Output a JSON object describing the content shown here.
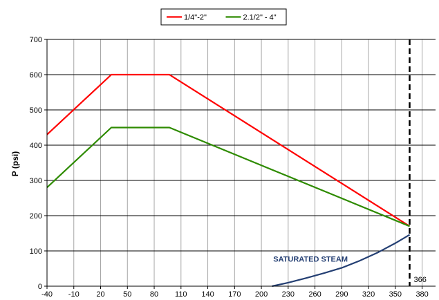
{
  "chart_data": {
    "type": "line",
    "title": "",
    "xlabel": "",
    "ylabel": "P (psi)",
    "x_ticks": [
      -40,
      -10,
      20,
      50,
      80,
      110,
      140,
      170,
      200,
      230,
      260,
      290,
      320,
      350,
      380
    ],
    "y_ticks": [
      0,
      100,
      200,
      300,
      400,
      500,
      600,
      700
    ],
    "xlim": [
      -40,
      395
    ],
    "ylim": [
      0,
      700
    ],
    "grid": true,
    "legend_position": "top-center",
    "series": [
      {
        "name": "1/4\"-2\"",
        "color": "#ff0000",
        "x": [
          -40,
          32,
          97,
          366
        ],
        "y": [
          430,
          600,
          600,
          170
        ]
      },
      {
        "name": "2.1/2\" - 4\"",
        "color": "#2e8b00",
        "x": [
          -40,
          32,
          97,
          366
        ],
        "y": [
          280,
          450,
          450,
          170
        ]
      },
      {
        "name": "",
        "color": "#243f73",
        "x": [
          212,
          230,
          250,
          270,
          290,
          310,
          330,
          350,
          366
        ],
        "y": [
          0,
          10,
          23,
          37,
          52,
          72,
          95,
          122,
          146
        ]
      }
    ],
    "annotations": [
      {
        "text": "SATURATED STEAM",
        "x": 255,
        "y": 70,
        "color": "#243f73"
      }
    ],
    "vline": {
      "x": 366,
      "label": "366",
      "style": "dashed",
      "color": "#000000"
    }
  }
}
